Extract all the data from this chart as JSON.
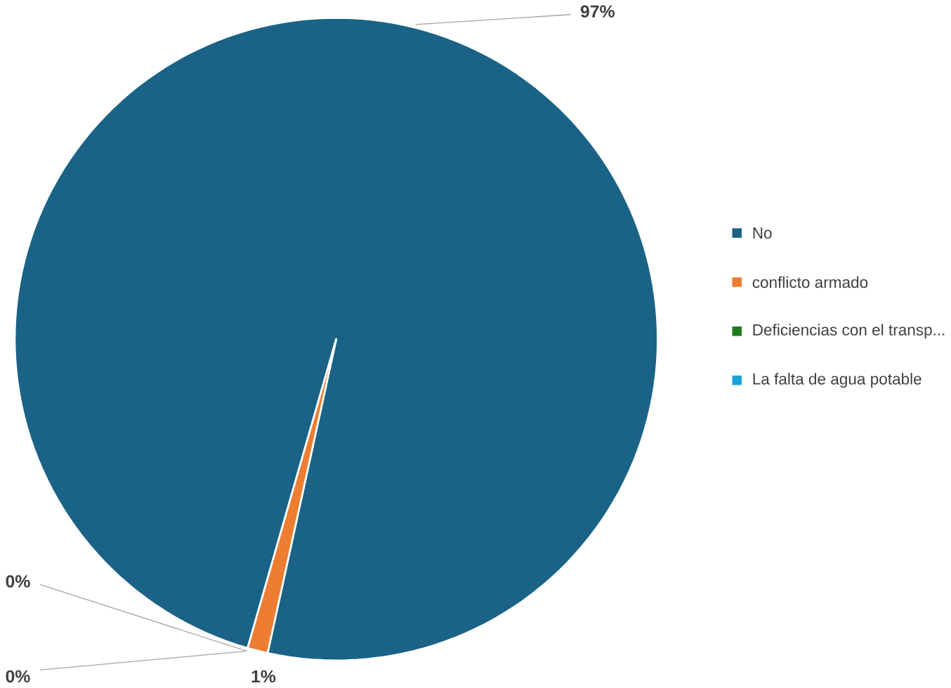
{
  "chart_data": {
    "type": "pie",
    "categories": [
      "No",
      "conflicto armado",
      "Deficiencias con el transp...",
      "La falta de agua potable"
    ],
    "values": [
      97,
      1,
      0,
      0
    ],
    "colors": [
      "#1a6387",
      "#ed7d31",
      "#1e7a1e",
      "#1aa3d9"
    ],
    "value_labels": [
      "97%",
      "1%",
      "0%",
      "0%"
    ],
    "legend": "right"
  }
}
